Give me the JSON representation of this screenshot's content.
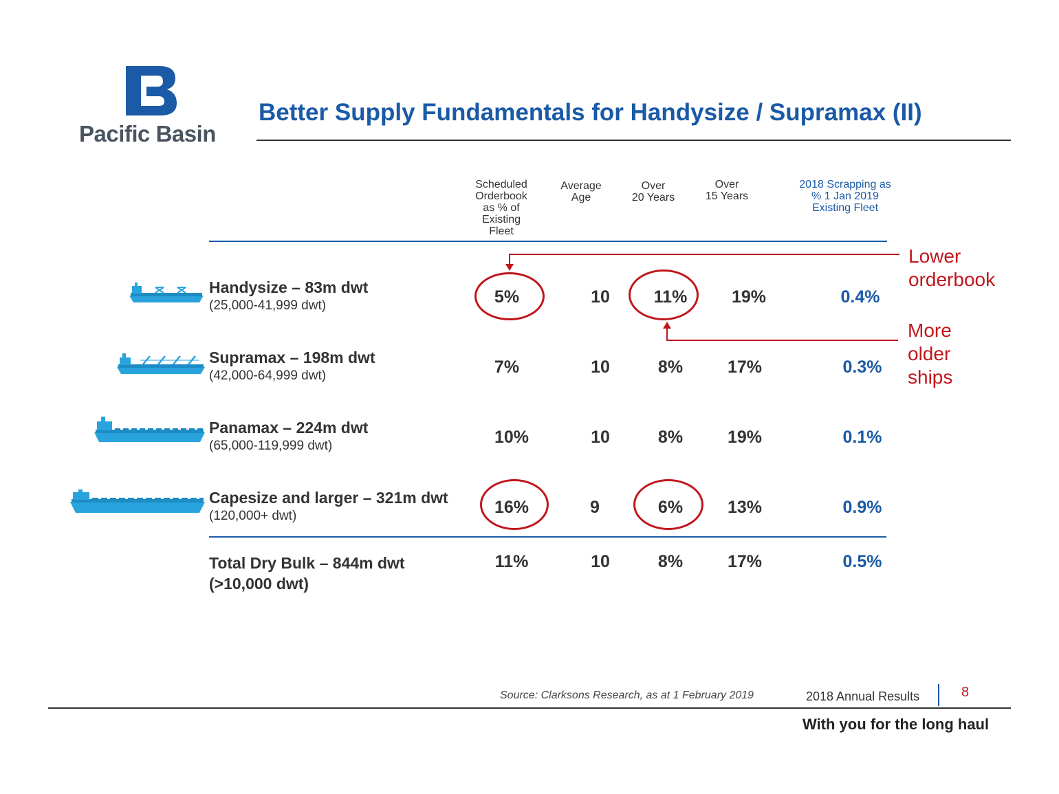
{
  "brand": {
    "name": "Pacific Basin",
    "logo_letters": "PB",
    "color": "#1a5aa6"
  },
  "title": "Better Supply Fundamentals for Handysize / Supramax (II)",
  "columns": {
    "orderbook": [
      "Scheduled",
      "Orderbook",
      "as % of",
      "Existing",
      "Fleet"
    ],
    "avg_age": [
      "Average",
      "Age"
    ],
    "over20": [
      "Over",
      "20 Years"
    ],
    "over15": [
      "Over",
      "15 Years"
    ],
    "scrapping": [
      "2018 Scrapping as",
      "% 1 Jan 2019",
      "Existing Fleet"
    ]
  },
  "rows": [
    {
      "name": "Handysize – 83m dwt",
      "sub": "(25,000-41,999 dwt)",
      "orderbook": "5%",
      "avg_age": "10",
      "over20": "11%",
      "over15": "19%",
      "scrapping": "0.4%"
    },
    {
      "name": "Supramax – 198m dwt",
      "sub": "(42,000-64,999 dwt)",
      "orderbook": "7%",
      "avg_age": "10",
      "over20": "8%",
      "over15": "17%",
      "scrapping": "0.3%"
    },
    {
      "name": "Panamax – 224m dwt",
      "sub": "(65,000-119,999 dwt)",
      "orderbook": "10%",
      "avg_age": "10",
      "over20": "8%",
      "over15": "19%",
      "scrapping": "0.1%"
    },
    {
      "name": "Capesize and larger – 321m dwt",
      "sub": "(120,000+ dwt)",
      "orderbook": "16%",
      "avg_age": "9",
      "over20": "6%",
      "over15": "13%",
      "scrapping": "0.9%"
    }
  ],
  "total": {
    "name_line1": "Total Dry Bulk – 844m dwt",
    "name_line2": "(>10,000 dwt)",
    "orderbook": "11%",
    "avg_age": "10",
    "over20": "8%",
    "over15": "17%",
    "scrapping": "0.5%"
  },
  "annotations": {
    "lower_orderbook": [
      "Lower",
      "orderbook"
    ],
    "older_ships": [
      "More",
      "older",
      "ships"
    ],
    "color": "#c0171c"
  },
  "footer": {
    "source": "Source: Clarksons Research, as at 1 February 2019",
    "report": "2018 Annual Results",
    "page": "8",
    "tagline": "With you for the long haul"
  }
}
